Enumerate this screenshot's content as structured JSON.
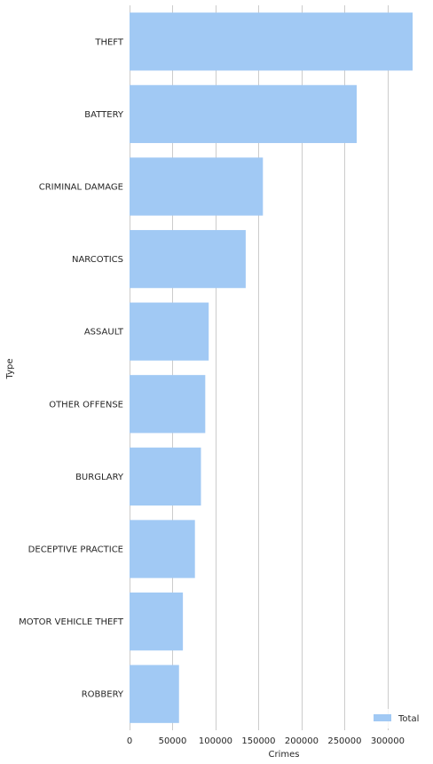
{
  "chart_data": {
    "type": "bar",
    "orientation": "horizontal",
    "categories": [
      "THEFT",
      "BATTERY",
      "CRIMINAL DAMAGE",
      "NARCOTICS",
      "ASSAULT",
      "OTHER OFFENSE",
      "BURGLARY",
      "DECEPTIVE PRACTICE",
      "MOTOR VEHICLE THEFT",
      "ROBBERY"
    ],
    "series": [
      {
        "name": "Total",
        "values": [
          329000,
          264000,
          155000,
          135000,
          92000,
          88000,
          83000,
          76000,
          62000,
          57500
        ]
      }
    ],
    "xlabel": "Crimes",
    "ylabel": "Type",
    "xlim": [
      0,
      330000
    ],
    "xticks": [
      0,
      50000,
      100000,
      150000,
      200000,
      250000,
      300000
    ],
    "grid": "vertical",
    "legend_position": "bottom-right",
    "colors": {
      "bar": "#a1c9f4",
      "grid": "#cccccc",
      "text": "#262626"
    }
  }
}
